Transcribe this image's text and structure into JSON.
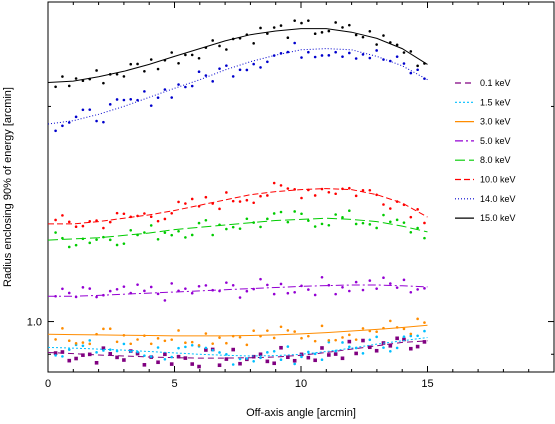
{
  "chart_data": {
    "type": "scatter",
    "title": "",
    "xlabel": "Off-axis angle [arcmin]",
    "ylabel": "Radius enclosing 90% of energy [arcmin]",
    "xlim": [
      0,
      20
    ],
    "ylim": [
      0.85,
      2.8
    ],
    "yscale": "log",
    "xticks": [
      0,
      5,
      10,
      15
    ],
    "xtick_labels": [
      "0",
      "5",
      "10",
      "15"
    ],
    "ytick_labels": [
      {
        "value": 1.0,
        "label": "1.0"
      }
    ],
    "grid": false,
    "legend_position": "right",
    "series": [
      {
        "name": "0.1 keV",
        "color": "#800080",
        "dash": "6,4",
        "marker": "square",
        "values": [
          0.905,
          0.902,
          0.898,
          0.895,
          0.892,
          0.89,
          0.889,
          0.889,
          0.89,
          0.892,
          0.897,
          0.905,
          0.915,
          0.925,
          0.935,
          0.94
        ]
      },
      {
        "name": "1.5 keV",
        "color": "#00bfff",
        "dash": "2,2",
        "marker": "dot",
        "values": [
          0.92,
          0.918,
          0.915,
          0.912,
          0.908,
          0.904,
          0.9,
          0.897,
          0.895,
          0.896,
          0.9,
          0.908,
          0.918,
          0.93,
          0.94,
          0.95
        ]
      },
      {
        "name": "3.0 keV",
        "color": "#ff8c00",
        "dash": "",
        "marker": "dot",
        "values": [
          0.96,
          0.959,
          0.958,
          0.957,
          0.956,
          0.955,
          0.955,
          0.955,
          0.956,
          0.958,
          0.961,
          0.965,
          0.97,
          0.975,
          0.981,
          0.988
        ]
      },
      {
        "name": "5.0 keV",
        "color": "#9400d3",
        "dash": "8,3,2,3",
        "marker": "dot",
        "values": [
          1.085,
          1.085,
          1.088,
          1.092,
          1.096,
          1.1,
          1.104,
          1.108,
          1.112,
          1.116,
          1.12,
          1.123,
          1.125,
          1.125,
          1.122,
          1.118
        ]
      },
      {
        "name": "8.0 keV",
        "color": "#00cc00",
        "dash": "10,4",
        "marker": "dot",
        "values": [
          1.3,
          1.305,
          1.31,
          1.32,
          1.33,
          1.345,
          1.355,
          1.365,
          1.375,
          1.385,
          1.39,
          1.395,
          1.39,
          1.38,
          1.36,
          1.335
        ]
      },
      {
        "name": "10.0 keV",
        "color": "#ff0000",
        "dash": "6,3",
        "marker": "dot",
        "values": [
          1.37,
          1.37,
          1.38,
          1.395,
          1.41,
          1.43,
          1.455,
          1.48,
          1.505,
          1.52,
          1.53,
          1.535,
          1.53,
          1.505,
          1.465,
          1.4
        ]
      },
      {
        "name": "14.0 keV",
        "color": "#0000cd",
        "dash": "1,2",
        "marker": "dot",
        "values": [
          1.89,
          1.91,
          1.95,
          2.0,
          2.06,
          2.12,
          2.18,
          2.25,
          2.31,
          2.36,
          2.4,
          2.41,
          2.4,
          2.35,
          2.28,
          2.18
        ]
      },
      {
        "name": "15.0 keV",
        "color": "#000000",
        "dash": "",
        "marker": "dot",
        "values": [
          2.16,
          2.17,
          2.2,
          2.24,
          2.29,
          2.35,
          2.41,
          2.47,
          2.52,
          2.55,
          2.57,
          2.57,
          2.54,
          2.49,
          2.41,
          2.29
        ]
      }
    ],
    "x": [
      0,
      1,
      2,
      3,
      4,
      5,
      6,
      7,
      8,
      9,
      10,
      11,
      12,
      13,
      14,
      15
    ]
  }
}
